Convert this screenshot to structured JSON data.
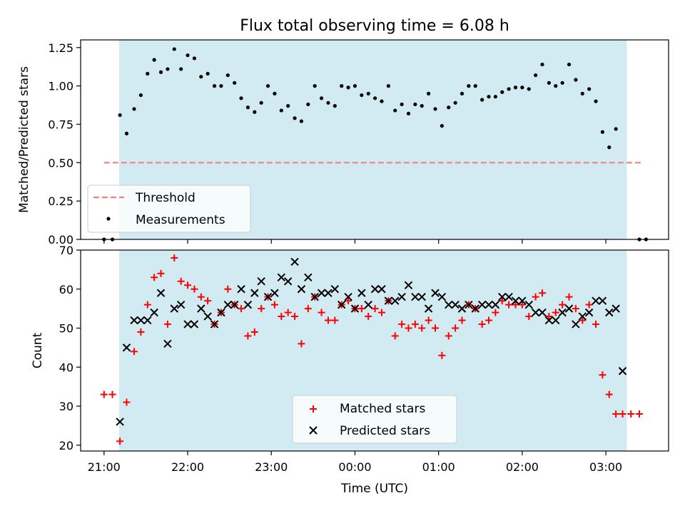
{
  "chart_data": [
    {
      "type": "scatter",
      "title": "Flux total observing time = 6.08 h",
      "ylabel": "Matched/Predicted stars",
      "ylim": [
        0,
        1.3
      ],
      "yticks": [
        0,
        0.25,
        0.5,
        0.75,
        1.0,
        1.25
      ],
      "ytick_labels": [
        "0.00",
        "0.25",
        "0.50",
        "0.75",
        "1.00",
        "1.25"
      ],
      "xlim": [
        20.72,
        27.75
      ],
      "shaded_span": [
        21.18,
        27.25
      ],
      "shade_color": "#add8e6",
      "threshold": {
        "name": "Threshold",
        "y": 0.5,
        "x_range": [
          21.0,
          27.45
        ],
        "color": "#f08080"
      },
      "series": [
        {
          "name": "Measurements",
          "color": "#000000",
          "points": [
            [
              21.0,
              0.0
            ],
            [
              21.1,
              0.0
            ],
            [
              21.19,
              0.81
            ],
            [
              21.27,
              0.69
            ],
            [
              21.36,
              0.85
            ],
            [
              21.44,
              0.94
            ],
            [
              21.52,
              1.08
            ],
            [
              21.6,
              1.17
            ],
            [
              21.68,
              1.09
            ],
            [
              21.76,
              1.11
            ],
            [
              21.84,
              1.24
            ],
            [
              21.92,
              1.11
            ],
            [
              22.0,
              1.2
            ],
            [
              22.08,
              1.18
            ],
            [
              22.16,
              1.06
            ],
            [
              22.24,
              1.08
            ],
            [
              22.32,
              1.0
            ],
            [
              22.4,
              1.0
            ],
            [
              22.48,
              1.07
            ],
            [
              22.56,
              1.02
            ],
            [
              22.64,
              0.92
            ],
            [
              22.72,
              0.86
            ],
            [
              22.8,
              0.83
            ],
            [
              22.88,
              0.89
            ],
            [
              22.96,
              1.0
            ],
            [
              23.04,
              0.95
            ],
            [
              23.12,
              0.84
            ],
            [
              23.2,
              0.87
            ],
            [
              23.28,
              0.79
            ],
            [
              23.36,
              0.77
            ],
            [
              23.44,
              0.88
            ],
            [
              23.52,
              1.0
            ],
            [
              23.6,
              0.92
            ],
            [
              23.68,
              0.89
            ],
            [
              23.76,
              0.87
            ],
            [
              23.84,
              1.0
            ],
            [
              23.92,
              0.99
            ],
            [
              24.0,
              1.0
            ],
            [
              24.08,
              0.94
            ],
            [
              24.16,
              0.95
            ],
            [
              24.24,
              0.92
            ],
            [
              24.32,
              0.9
            ],
            [
              24.4,
              1.0
            ],
            [
              24.48,
              0.84
            ],
            [
              24.56,
              0.88
            ],
            [
              24.64,
              0.82
            ],
            [
              24.72,
              0.88
            ],
            [
              24.8,
              0.87
            ],
            [
              24.88,
              0.95
            ],
            [
              24.96,
              0.85
            ],
            [
              25.04,
              0.74
            ],
            [
              25.12,
              0.86
            ],
            [
              25.2,
              0.89
            ],
            [
              25.28,
              0.95
            ],
            [
              25.36,
              1.0
            ],
            [
              25.44,
              1.0
            ],
            [
              25.52,
              0.91
            ],
            [
              25.6,
              0.93
            ],
            [
              25.68,
              0.93
            ],
            [
              25.76,
              0.96
            ],
            [
              25.84,
              0.98
            ],
            [
              25.92,
              0.99
            ],
            [
              26.0,
              0.99
            ],
            [
              26.08,
              0.98
            ],
            [
              26.16,
              1.07
            ],
            [
              26.24,
              1.14
            ],
            [
              26.32,
              1.02
            ],
            [
              26.4,
              1.0
            ],
            [
              26.48,
              1.02
            ],
            [
              26.56,
              1.14
            ],
            [
              26.64,
              1.04
            ],
            [
              26.72,
              0.95
            ],
            [
              26.8,
              0.98
            ],
            [
              26.88,
              0.9
            ],
            [
              26.96,
              0.7
            ],
            [
              27.04,
              0.6
            ],
            [
              27.12,
              0.72
            ],
            [
              27.4,
              0.0
            ],
            [
              27.48,
              0.0
            ]
          ]
        }
      ],
      "legend": {
        "placement": "lower-left",
        "entries": [
          "Threshold",
          "Measurements"
        ]
      }
    },
    {
      "type": "scatter",
      "xlabel": "Time (UTC)",
      "ylabel": "Count",
      "ylim": [
        18.5,
        70
      ],
      "yticks": [
        20,
        30,
        40,
        50,
        60,
        70
      ],
      "xlim": [
        20.72,
        27.75
      ],
      "xticks": [
        21,
        22,
        23,
        24,
        25,
        26,
        27
      ],
      "xtick_labels": [
        "21:00",
        "22:00",
        "23:00",
        "00:00",
        "01:00",
        "02:00",
        "03:00"
      ],
      "shaded_span": [
        21.18,
        27.25
      ],
      "shade_color": "#add8e6",
      "series": [
        {
          "name": "Matched stars",
          "marker": "+",
          "color": "#ff0000",
          "points": [
            [
              21.0,
              33
            ],
            [
              21.1,
              33
            ],
            [
              21.19,
              21
            ],
            [
              21.27,
              31
            ],
            [
              21.36,
              44
            ],
            [
              21.44,
              49
            ],
            [
              21.52,
              56
            ],
            [
              21.6,
              63
            ],
            [
              21.68,
              64
            ],
            [
              21.76,
              51
            ],
            [
              21.84,
              68
            ],
            [
              21.92,
              62
            ],
            [
              22.0,
              61
            ],
            [
              22.08,
              60
            ],
            [
              22.16,
              58
            ],
            [
              22.24,
              57
            ],
            [
              22.32,
              51
            ],
            [
              22.4,
              54
            ],
            [
              22.48,
              60
            ],
            [
              22.56,
              56
            ],
            [
              22.64,
              55
            ],
            [
              22.72,
              48
            ],
            [
              22.8,
              49
            ],
            [
              22.88,
              55
            ],
            [
              22.96,
              58
            ],
            [
              23.04,
              56
            ],
            [
              23.12,
              53
            ],
            [
              23.2,
              54
            ],
            [
              23.28,
              53
            ],
            [
              23.36,
              46
            ],
            [
              23.44,
              55
            ],
            [
              23.52,
              58
            ],
            [
              23.6,
              54
            ],
            [
              23.68,
              52
            ],
            [
              23.76,
              52
            ],
            [
              23.84,
              56
            ],
            [
              23.92,
              57
            ],
            [
              24.0,
              55
            ],
            [
              24.08,
              55
            ],
            [
              24.16,
              53
            ],
            [
              24.24,
              55
            ],
            [
              24.32,
              54
            ],
            [
              24.4,
              57
            ],
            [
              24.48,
              48
            ],
            [
              24.56,
              51
            ],
            [
              24.64,
              50
            ],
            [
              24.72,
              51
            ],
            [
              24.8,
              50
            ],
            [
              24.88,
              52
            ],
            [
              24.96,
              50
            ],
            [
              25.04,
              43
            ],
            [
              25.12,
              48
            ],
            [
              25.2,
              50
            ],
            [
              25.28,
              52
            ],
            [
              25.36,
              56
            ],
            [
              25.44,
              55
            ],
            [
              25.52,
              51
            ],
            [
              25.6,
              52
            ],
            [
              25.68,
              54
            ],
            [
              25.76,
              57
            ],
            [
              25.84,
              56
            ],
            [
              25.92,
              56
            ],
            [
              26.0,
              56
            ],
            [
              26.08,
              53
            ],
            [
              26.16,
              58
            ],
            [
              26.24,
              59
            ],
            [
              26.32,
              53
            ],
            [
              26.4,
              54
            ],
            [
              26.48,
              56
            ],
            [
              26.56,
              58
            ],
            [
              26.64,
              55
            ],
            [
              26.72,
              52
            ],
            [
              26.8,
              56
            ],
            [
              26.88,
              51
            ],
            [
              26.96,
              38
            ],
            [
              27.04,
              33
            ],
            [
              27.12,
              28
            ],
            [
              27.2,
              28
            ],
            [
              27.3,
              28
            ],
            [
              27.4,
              28
            ]
          ]
        },
        {
          "name": "Predicted stars",
          "marker": "x",
          "color": "#000000",
          "points": [
            [
              21.19,
              26
            ],
            [
              21.27,
              45
            ],
            [
              21.36,
              52
            ],
            [
              21.44,
              52
            ],
            [
              21.52,
              52
            ],
            [
              21.6,
              54
            ],
            [
              21.68,
              59
            ],
            [
              21.76,
              46
            ],
            [
              21.84,
              55
            ],
            [
              21.92,
              56
            ],
            [
              22.0,
              51
            ],
            [
              22.08,
              51
            ],
            [
              22.16,
              55
            ],
            [
              22.24,
              53
            ],
            [
              22.32,
              51
            ],
            [
              22.4,
              54
            ],
            [
              22.48,
              56
            ],
            [
              22.56,
              56
            ],
            [
              22.64,
              60
            ],
            [
              22.72,
              56
            ],
            [
              22.8,
              59
            ],
            [
              22.88,
              62
            ],
            [
              22.96,
              58
            ],
            [
              23.04,
              59
            ],
            [
              23.12,
              63
            ],
            [
              23.2,
              62
            ],
            [
              23.28,
              67
            ],
            [
              23.36,
              60
            ],
            [
              23.44,
              63
            ],
            [
              23.52,
              58
            ],
            [
              23.6,
              59
            ],
            [
              23.68,
              59
            ],
            [
              23.76,
              60
            ],
            [
              23.84,
              56
            ],
            [
              23.92,
              58
            ],
            [
              24.0,
              55
            ],
            [
              24.08,
              59
            ],
            [
              24.16,
              56
            ],
            [
              24.24,
              60
            ],
            [
              24.32,
              60
            ],
            [
              24.4,
              57
            ],
            [
              24.48,
              57
            ],
            [
              24.56,
              58
            ],
            [
              24.64,
              61
            ],
            [
              24.72,
              58
            ],
            [
              24.8,
              58
            ],
            [
              24.88,
              55
            ],
            [
              24.96,
              59
            ],
            [
              25.04,
              58
            ],
            [
              25.12,
              56
            ],
            [
              25.2,
              56
            ],
            [
              25.28,
              55
            ],
            [
              25.36,
              56
            ],
            [
              25.44,
              55
            ],
            [
              25.52,
              56
            ],
            [
              25.6,
              56
            ],
            [
              25.68,
              56
            ],
            [
              25.76,
              58
            ],
            [
              25.84,
              58
            ],
            [
              25.92,
              57
            ],
            [
              26.0,
              57
            ],
            [
              26.08,
              56
            ],
            [
              26.16,
              54
            ],
            [
              26.24,
              54
            ],
            [
              26.32,
              52
            ],
            [
              26.4,
              52
            ],
            [
              26.48,
              54
            ],
            [
              26.56,
              55
            ],
            [
              26.64,
              51
            ],
            [
              26.72,
              53
            ],
            [
              26.8,
              54
            ],
            [
              26.88,
              57
            ],
            [
              26.96,
              57
            ],
            [
              27.04,
              54
            ],
            [
              27.12,
              55
            ],
            [
              27.2,
              39
            ]
          ]
        }
      ],
      "legend": {
        "placement": "lower-center",
        "entries": [
          "Matched stars",
          "Predicted stars"
        ]
      }
    }
  ]
}
